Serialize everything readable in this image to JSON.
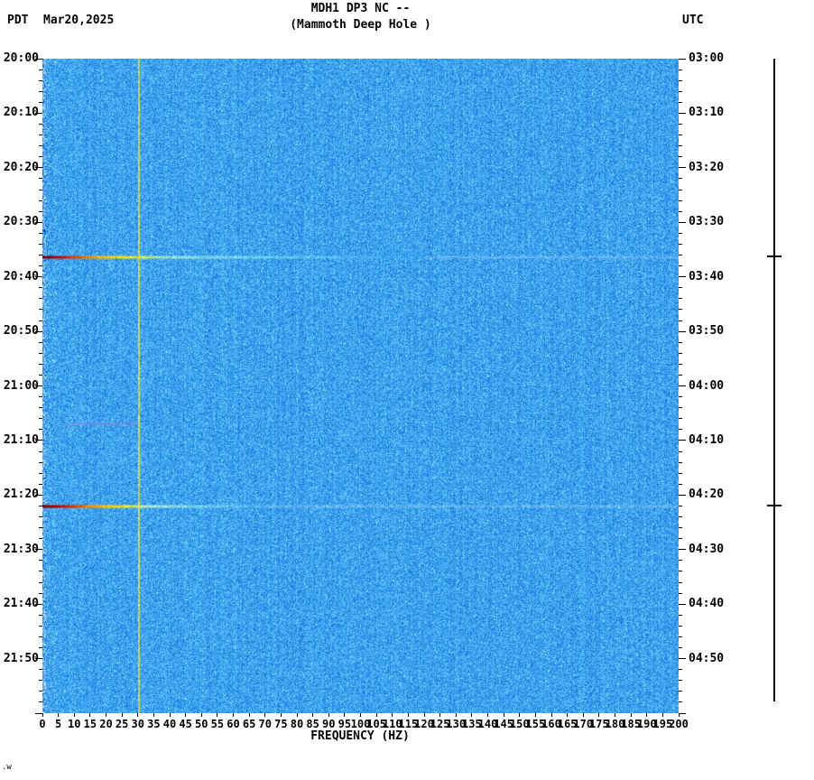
{
  "header": {
    "tz_left": "PDT",
    "date": "Mar20,2025",
    "title": "MDH1 DP3 NC --",
    "subtitle": "(Mammoth Deep Hole )",
    "tz_right": "UTC"
  },
  "footer": {
    "xlabel": "FREQUENCY (HZ)",
    "note": ".w"
  },
  "chart_data": {
    "type": "heatmap",
    "subtype": "seismic-spectrogram",
    "title": "MDH1 DP3 NC --",
    "station_name": "(Mammoth Deep Hole )",
    "xlabel": "FREQUENCY (HZ)",
    "x_range_hz": [
      0,
      200
    ],
    "x_tick_step_hz": 5,
    "x_tick_labels": [
      "0",
      "5",
      "10",
      "15",
      "20",
      "25",
      "30",
      "35",
      "40",
      "45",
      "50",
      "55",
      "60",
      "65",
      "70",
      "75",
      "80",
      "85",
      "90",
      "95",
      "100",
      "105",
      "110",
      "115",
      "120",
      "125",
      "130",
      "135",
      "140",
      "145",
      "150",
      "155",
      "160",
      "165",
      "170",
      "175",
      "180",
      "185",
      "190",
      "195",
      "200"
    ],
    "y_left_timezone": "PDT",
    "y_right_timezone": "UTC",
    "y_range_minutes": [
      0,
      120
    ],
    "y_major_tick_minutes": 10,
    "y_minor_tick_minutes": 2,
    "y_left_tick_labels": [
      "20:00",
      "20:10",
      "20:20",
      "20:30",
      "20:40",
      "20:50",
      "21:00",
      "21:10",
      "21:20",
      "21:30",
      "21:40",
      "21:50"
    ],
    "y_right_tick_labels": [
      "03:00",
      "03:10",
      "03:20",
      "03:30",
      "03:40",
      "03:50",
      "04:00",
      "04:10",
      "04:20",
      "04:30",
      "04:40",
      "04:50"
    ],
    "background_noise_color": "#1e8fe8",
    "persistent_line": {
      "freq_hz": 30,
      "color": "#c2d455"
    },
    "events": [
      {
        "label": "broadband event 20:36 PDT / 03:36 UTC",
        "start_minute": 36.2,
        "colored_max_hz": 120,
        "stops": [
          [
            0,
            "#5e0000"
          ],
          [
            3,
            "#9b0000"
          ],
          [
            7,
            "#d21500"
          ],
          [
            12,
            "#f06000"
          ],
          [
            18,
            "#ffb300"
          ],
          [
            25,
            "#ffe100"
          ],
          [
            31,
            "#c8e24a"
          ],
          [
            38,
            "#8fd8c8"
          ],
          [
            55,
            "#6ecbe8"
          ],
          [
            90,
            "#4fb4f2"
          ],
          [
            120,
            "#2d9af0"
          ]
        ]
      },
      {
        "label": "broadband event 21:22 PDT / 04:22 UTC",
        "start_minute": 82.0,
        "colored_max_hz": 70,
        "stops": [
          [
            0,
            "#700000"
          ],
          [
            4,
            "#a80000"
          ],
          [
            9,
            "#e03000"
          ],
          [
            15,
            "#ff9000"
          ],
          [
            22,
            "#ffd800"
          ],
          [
            28,
            "#d8e455"
          ],
          [
            34,
            "#9adcd0"
          ],
          [
            48,
            "#72cdea"
          ],
          [
            70,
            "#3da4ef"
          ]
        ]
      }
    ],
    "minor_events": [
      {
        "label": "faint low-frequency smear 21:07 PDT",
        "start_minute": 66.7,
        "freq_start_hz": 8,
        "freq_end_hz": 30,
        "color": "#a77fd4",
        "alpha": 0.35
      }
    ],
    "amplitude_trace": {
      "present": true,
      "tick_minutes": [
        36.2,
        82.0
      ]
    }
  }
}
